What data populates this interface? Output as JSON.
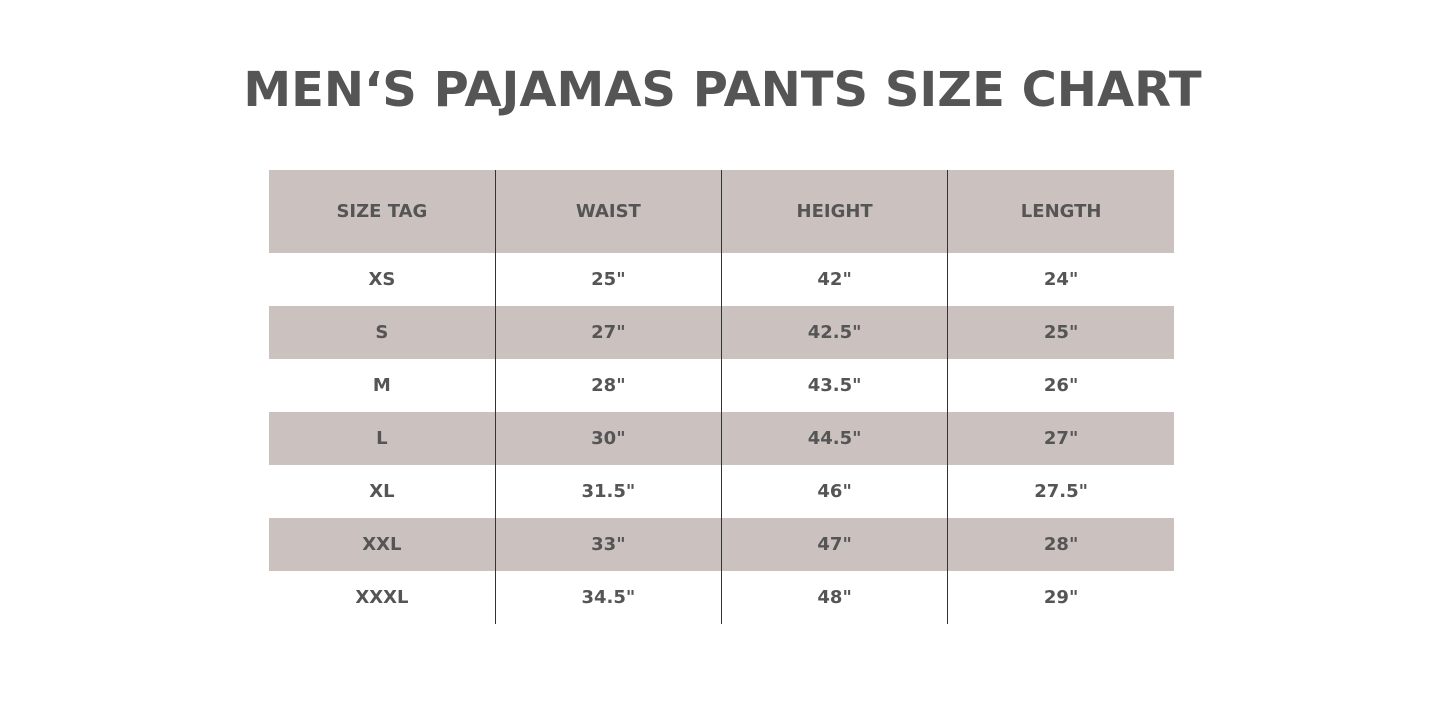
{
  "title": "MEN‘S PAJAMAS PANTS SIZE CHART",
  "colors": {
    "header_bg": "#cbc2bf",
    "stripe_bg": "#cbc2bf",
    "text": "#555555"
  },
  "table": {
    "headers": [
      "SIZE TAG",
      "WAIST",
      "HEIGHT",
      "LENGTH"
    ],
    "rows": [
      [
        "XS",
        "25\"",
        "42\"",
        "24\""
      ],
      [
        "S",
        "27\"",
        "42.5\"",
        "25\""
      ],
      [
        "M",
        "28\"",
        "43.5\"",
        "26\""
      ],
      [
        "L",
        "30\"",
        "44.5\"",
        "27\""
      ],
      [
        "XL",
        "31.5\"",
        "46\"",
        "27.5\""
      ],
      [
        "XXL",
        "33\"",
        "47\"",
        "28\""
      ],
      [
        "XXXL",
        "34.5\"",
        "48\"",
        "29\""
      ]
    ]
  }
}
